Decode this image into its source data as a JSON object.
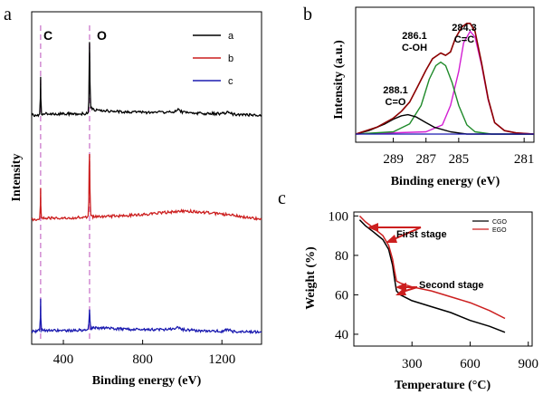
{
  "colors": {
    "black": "#000000",
    "red": "#cc1f1f",
    "blue": "#1b1bb0",
    "green": "#1f8a2a",
    "magenta": "#d21ed2",
    "darkred": "#8b0000",
    "guide": "#d28ad2"
  },
  "chart_data": [
    {
      "panel": "a",
      "type": "line",
      "xlabel": "Binding energy (eV)",
      "ylabel": "Intensity",
      "xlim": [
        240,
        1400
      ],
      "x_ticks": [
        400,
        800,
        1200
      ],
      "peak_labels": [
        "C",
        "O"
      ],
      "peak_positions": [
        285,
        532
      ],
      "series": [
        {
          "name": "a",
          "color": "#000000",
          "offset": 2.0,
          "x": [
            240,
            270,
            280,
            284,
            285,
            286,
            290,
            320,
            400,
            480,
            525,
            528,
            530,
            532,
            534,
            538,
            560,
            600,
            700,
            800,
            900,
            960,
            975,
            1000,
            1100,
            1200,
            1230,
            1260,
            1300,
            1400
          ],
          "y": [
            0.02,
            0.02,
            0.04,
            0.4,
            0.9,
            0.4,
            0.05,
            0.05,
            0.05,
            0.05,
            0.06,
            0.3,
            1.0,
            1.7,
            0.8,
            0.18,
            0.14,
            0.12,
            0.1,
            0.08,
            0.09,
            0.1,
            0.16,
            0.09,
            0.06,
            0.05,
            0.09,
            0.04,
            0.03,
            0.02
          ]
        },
        {
          "name": "b",
          "color": "#cc1f1f",
          "offset": 1.0,
          "x": [
            240,
            270,
            280,
            284,
            285,
            286,
            290,
            320,
            400,
            480,
            525,
            528,
            530,
            532,
            534,
            538,
            560,
            600,
            700,
            800,
            900,
            1000,
            1050,
            1100,
            1200,
            1300,
            1400
          ],
          "y": [
            0.0,
            0.0,
            0.02,
            0.3,
            0.72,
            0.3,
            0.03,
            0.03,
            0.03,
            0.04,
            0.06,
            0.4,
            1.2,
            1.5,
            0.7,
            0.06,
            0.06,
            0.06,
            0.08,
            0.11,
            0.15,
            0.19,
            0.18,
            0.16,
            0.12,
            0.06,
            0.0
          ]
        },
        {
          "name": "c",
          "color": "#1b1bb0",
          "offset": 0.0,
          "x": [
            240,
            270,
            280,
            284,
            285,
            286,
            290,
            320,
            400,
            480,
            525,
            528,
            530,
            532,
            534,
            538,
            560,
            600,
            700,
            800,
            900,
            960,
            975,
            1000,
            1100,
            1200,
            1230,
            1260,
            1300,
            1400
          ],
          "y": [
            0.05,
            0.05,
            0.08,
            0.35,
            0.8,
            0.35,
            0.08,
            0.07,
            0.07,
            0.07,
            0.08,
            0.25,
            0.35,
            0.55,
            0.3,
            0.12,
            0.12,
            0.12,
            0.1,
            0.09,
            0.09,
            0.1,
            0.16,
            0.09,
            0.06,
            0.05,
            0.09,
            0.04,
            0.04,
            0.03
          ]
        }
      ]
    },
    {
      "panel": "b",
      "type": "line",
      "xlabel": "Binding energy (eV)",
      "ylabel": "Intensity (a.u.)",
      "xlim": [
        291.3,
        280.4
      ],
      "x_ticks": [
        289,
        287,
        285,
        281
      ],
      "peaks": [
        {
          "center": 284.3,
          "label_value": "284.3",
          "label_bond": "C=C",
          "color": "#d21ed2"
        },
        {
          "center": 286.1,
          "label_value": "286.1",
          "label_bond": "C-OH",
          "color": "#1f8a2a"
        },
        {
          "center": 288.1,
          "label_value": "288.1",
          "label_bond": "C=O",
          "color": "#000000"
        }
      ],
      "series": [
        {
          "component": "C=C",
          "color": "#d21ed2",
          "x": [
            291.3,
            287.0,
            286.0,
            285.5,
            285.0,
            284.7,
            284.3,
            284.0,
            283.6,
            283.2,
            282.8,
            282.2,
            281.5,
            280.4
          ],
          "y": [
            0.0,
            0.02,
            0.08,
            0.25,
            0.55,
            0.8,
            0.9,
            0.85,
            0.6,
            0.3,
            0.1,
            0.03,
            0.01,
            0.0
          ]
        },
        {
          "component": "C-OH",
          "color": "#1f8a2a",
          "x": [
            291.3,
            289.0,
            288.0,
            287.3,
            286.8,
            286.4,
            286.1,
            285.8,
            285.4,
            285.0,
            284.5,
            284.0,
            283.0,
            280.4
          ],
          "y": [
            0.0,
            0.02,
            0.09,
            0.25,
            0.48,
            0.6,
            0.63,
            0.6,
            0.45,
            0.25,
            0.08,
            0.02,
            0.0,
            0.0
          ]
        },
        {
          "component": "C=O",
          "color": "#000000",
          "x": [
            291.3,
            290.5,
            289.5,
            289.0,
            288.5,
            288.1,
            287.6,
            287.0,
            286.5,
            285.5,
            284.5,
            280.4
          ],
          "y": [
            0.0,
            0.03,
            0.09,
            0.13,
            0.16,
            0.17,
            0.15,
            0.1,
            0.06,
            0.02,
            0.0,
            0.0
          ]
        },
        {
          "component": "envelope",
          "color": "#8b0000",
          "x": [
            291.3,
            290.0,
            289.0,
            288.5,
            288.0,
            287.5,
            287.0,
            286.6,
            286.1,
            285.8,
            285.5,
            285.2,
            284.8,
            284.5,
            284.3,
            284.0,
            283.6,
            283.2,
            282.8,
            282.2,
            281.5,
            280.4
          ],
          "y": [
            0.0,
            0.06,
            0.14,
            0.2,
            0.28,
            0.42,
            0.56,
            0.66,
            0.71,
            0.69,
            0.72,
            0.84,
            0.94,
            0.97,
            0.97,
            0.9,
            0.62,
            0.31,
            0.1,
            0.03,
            0.01,
            0.0
          ]
        }
      ]
    },
    {
      "panel": "c",
      "type": "line",
      "xlabel": "Temperature (°C)",
      "ylabel": "Weight (%)",
      "xlim": [
        0,
        920
      ],
      "ylim": [
        34,
        102
      ],
      "x_ticks": [
        300,
        600,
        900
      ],
      "y_ticks": [
        40,
        60,
        80,
        100
      ],
      "annotations": [
        {
          "text": "First stage",
          "x": 230,
          "y": 93
        },
        {
          "text": "Second stage",
          "x": 380,
          "y": 65
        }
      ],
      "series": [
        {
          "name": "CGO",
          "color": "#000000",
          "x": [
            30,
            60,
            100,
            150,
            180,
            200,
            210,
            220,
            240,
            300,
            400,
            500,
            600,
            700,
            780
          ],
          "y": [
            98,
            95,
            92,
            88,
            83,
            75,
            68,
            62,
            60,
            57,
            54,
            51,
            47,
            44,
            41
          ]
        },
        {
          "name": "EGO",
          "color": "#cc1f1f",
          "x": [
            30,
            60,
            100,
            150,
            180,
            200,
            210,
            220,
            240,
            300,
            400,
            500,
            600,
            700,
            780
          ],
          "y": [
            100,
            97,
            94,
            90,
            85,
            78,
            72,
            67,
            66,
            64,
            62,
            59,
            56,
            52,
            48
          ]
        }
      ]
    }
  ]
}
